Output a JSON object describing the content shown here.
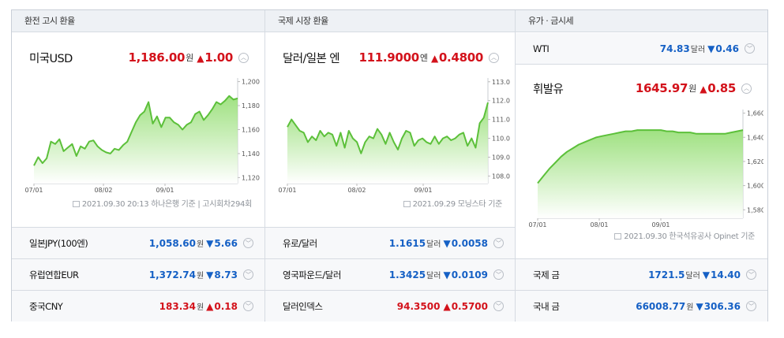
{
  "panels": [
    {
      "header": "환전 고시 환율",
      "main": {
        "name": "미국USD",
        "value": "1,186.00",
        "unit": "원",
        "dir": "up",
        "tri": "▲",
        "change": "1.00",
        "basis": "2021.09.30 20:13 하나은행 기준 | 고시회차294회"
      },
      "rows": [
        {
          "name": "일본JPY(100엔)",
          "value": "1,058.60",
          "unit": "원",
          "dir": "down",
          "tri": "▼",
          "change": "5.66"
        },
        {
          "name": "유럽연합EUR",
          "value": "1,372.74",
          "unit": "원",
          "dir": "down",
          "tri": "▼",
          "change": "8.73"
        },
        {
          "name": "중국CNY",
          "value": "183.34",
          "unit": "원",
          "dir": "up",
          "tri": "▲",
          "change": "0.18"
        }
      ]
    },
    {
      "header": "국제 시장 환율",
      "main": {
        "name": "달러/일본 엔",
        "value": "111.9000",
        "unit": "엔",
        "dir": "up",
        "tri": "▲",
        "change": "0.4800",
        "basis": "2021.09.29 모닝스타 기준"
      },
      "rows": [
        {
          "name": "유로/달러",
          "value": "1.1615",
          "unit": "달러",
          "dir": "down",
          "tri": "▼",
          "change": "0.0058"
        },
        {
          "name": "영국파운드/달러",
          "value": "1.3425",
          "unit": "달러",
          "dir": "down",
          "tri": "▼",
          "change": "0.0109"
        },
        {
          "name": "달러인덱스",
          "value": "94.3500",
          "unit": "",
          "dir": "up",
          "tri": "▲",
          "change": "0.5700"
        }
      ]
    },
    {
      "header": "유가 · 금시세",
      "top": {
        "name": "WTI",
        "value": "74.83",
        "unit": "달러",
        "dir": "down",
        "tri": "▼",
        "change": "0.46"
      },
      "main": {
        "name": "휘발유",
        "value": "1645.97",
        "unit": "원",
        "dir": "up",
        "tri": "▲",
        "change": "0.85",
        "basis": "2021.09.30 한국석유공사 Opinet 기준"
      },
      "rows": [
        {
          "name": "국제 금",
          "value": "1721.5",
          "unit": "달러",
          "dir": "down",
          "tri": "▼",
          "change": "14.40"
        },
        {
          "name": "국내 금",
          "value": "66008.77",
          "unit": "원",
          "dir": "down",
          "tri": "▼",
          "change": "306.36"
        }
      ]
    }
  ],
  "toggle_icon": "chevron-up-icon",
  "row_toggle_icon": "chevron-down-icon",
  "chart_data": [
    {
      "type": "area",
      "series": [
        {
          "values": [
            1130,
            1137,
            1132,
            1136,
            1150,
            1148,
            1152,
            1142,
            1145,
            1148,
            1138,
            1146,
            1144,
            1150,
            1151,
            1146,
            1143,
            1141,
            1140,
            1144,
            1143,
            1147,
            1150,
            1158,
            1166,
            1172,
            1175,
            1183,
            1165,
            1171,
            1162,
            1170,
            1170,
            1166,
            1164,
            1160,
            1164,
            1166,
            1173,
            1175,
            1168,
            1172,
            1177,
            1183,
            1181,
            1184,
            1188,
            1185,
            1186
          ]
        }
      ],
      "x_ticks": [
        "07/01",
        "08/02",
        "09/01"
      ],
      "y_ticks": [
        1120,
        1140,
        1160,
        1180,
        1200
      ],
      "ylim": [
        1115,
        1203
      ],
      "line_color": "#5cc03a"
    },
    {
      "type": "area",
      "series": [
        {
          "values": [
            110.6,
            111.0,
            110.7,
            110.4,
            110.3,
            109.8,
            110.1,
            109.9,
            110.4,
            110.1,
            110.3,
            110.2,
            109.6,
            110.3,
            109.5,
            110.4,
            110.0,
            109.8,
            109.2,
            109.8,
            110.1,
            110.0,
            110.5,
            110.2,
            109.7,
            110.3,
            109.8,
            109.4,
            110.0,
            110.4,
            110.3,
            109.6,
            109.9,
            110.0,
            109.8,
            109.7,
            110.1,
            109.7,
            110.0,
            110.1,
            109.9,
            110.0,
            110.2,
            110.3,
            109.6,
            110.0,
            109.5,
            110.8,
            111.1,
            111.9
          ]
        }
      ],
      "x_ticks": [
        "07/01",
        "08/02",
        "09/01"
      ],
      "y_ticks": [
        108.0,
        109.0,
        110.0,
        111.0,
        112.0,
        113.0
      ],
      "ylim": [
        107.6,
        113.2
      ],
      "line_color": "#5cc03a"
    },
    {
      "type": "area",
      "series": [
        {
          "values": [
            1602,
            1608,
            1614,
            1619,
            1624,
            1628,
            1631,
            1634,
            1636,
            1638,
            1640,
            1641,
            1642,
            1643,
            1644,
            1645,
            1645,
            1646,
            1646,
            1646,
            1646,
            1646,
            1645,
            1645,
            1644,
            1644,
            1644,
            1643,
            1643,
            1643,
            1643,
            1643,
            1643,
            1644,
            1645,
            1646
          ]
        }
      ],
      "x_ticks": [
        "07/01",
        "08/01",
        "09/01"
      ],
      "y_ticks": [
        1580,
        1600,
        1620,
        1640,
        1660
      ],
      "ylim": [
        1573,
        1663
      ],
      "line_color": "#5cc03a"
    }
  ]
}
